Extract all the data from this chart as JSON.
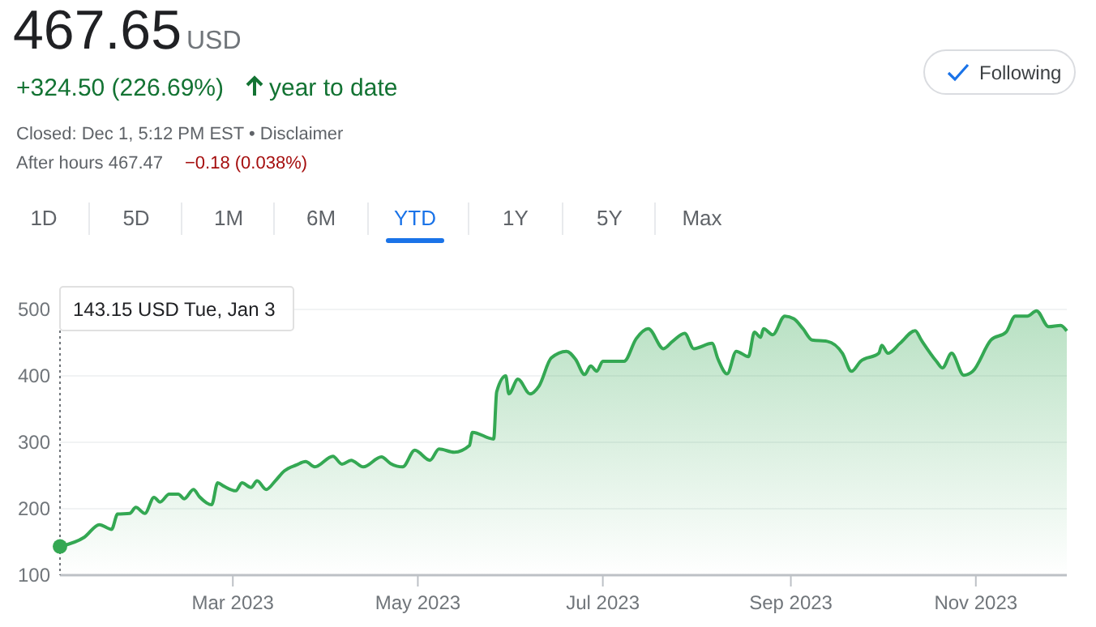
{
  "chart_data": {
    "type": "area",
    "title": "467.65",
    "annotations": [
      "USD",
      "+324.50 (226.69%)",
      "year to date",
      "Closed: Dec 1, 5:12 PM EST • Disclaimer",
      "After hours 467.47",
      "−0.18 (0.038%)",
      "Following",
      "1D",
      "5D",
      "1M",
      "6M",
      "YTD",
      "1Y",
      "5Y",
      "Max",
      "143.15 USD  Tue, Jan 3"
    ],
    "x": [
      "2023-01-03",
      "2023-01-11",
      "2023-01-16",
      "2023-01-20",
      "2023-01-22",
      "2023-01-26",
      "2023-01-28",
      "2023-01-31",
      "2023-02-03",
      "2023-02-05",
      "2023-02-08",
      "2023-02-11",
      "2023-02-13",
      "2023-02-16",
      "2023-02-18",
      "2023-02-22",
      "2023-02-24",
      "2023-02-26",
      "2023-03-02",
      "2023-03-04",
      "2023-03-07",
      "2023-03-09",
      "2023-03-12",
      "2023-03-15",
      "2023-03-18",
      "2023-03-22",
      "2023-03-25",
      "2023-03-28",
      "2023-04-03",
      "2023-04-06",
      "2023-04-09",
      "2023-04-13",
      "2023-04-19",
      "2023-04-22",
      "2023-04-26",
      "2023-04-30",
      "2023-05-05",
      "2023-05-08",
      "2023-05-13",
      "2023-05-18",
      "2023-05-19",
      "2023-05-26",
      "2023-05-27",
      "2023-05-30",
      "2023-05-31",
      "2023-06-03",
      "2023-06-07",
      "2023-06-10",
      "2023-06-14",
      "2023-06-19",
      "2023-06-22",
      "2023-06-25",
      "2023-06-27",
      "2023-06-29",
      "2023-07-01",
      "2023-07-08",
      "2023-07-12",
      "2023-07-16",
      "2023-07-21",
      "2023-07-24",
      "2023-07-28",
      "2023-07-31",
      "2023-08-06",
      "2023-08-08",
      "2023-08-11",
      "2023-08-14",
      "2023-08-18",
      "2023-08-20",
      "2023-08-22",
      "2023-08-23",
      "2023-08-26",
      "2023-08-30",
      "2023-09-02",
      "2023-09-05",
      "2023-09-08",
      "2023-09-13",
      "2023-09-18",
      "2023-09-21",
      "2023-09-24",
      "2023-09-30",
      "2023-10-01",
      "2023-10-03",
      "2023-10-07",
      "2023-10-12",
      "2023-10-14",
      "2023-10-19",
      "2023-10-21",
      "2023-10-24",
      "2023-10-28",
      "2023-10-31",
      "2023-11-06",
      "2023-11-11",
      "2023-11-14",
      "2023-11-18",
      "2023-11-21",
      "2023-11-25",
      "2023-11-29",
      "2023-12-01"
    ],
    "series": [
      {
        "color": "#34a853",
        "values": [
          143.15,
          157,
          176,
          169,
          192,
          193,
          202,
          193,
          217,
          210,
          222,
          222,
          215,
          229,
          218,
          206,
          239,
          234,
          227,
          239,
          232,
          242,
          229,
          242,
          257,
          266,
          271,
          263,
          279,
          267,
          273,
          263,
          278,
          268,
          263,
          288,
          273,
          290,
          285,
          295,
          315,
          305,
          376,
          400,
          373,
          395,
          373,
          385,
          427,
          437,
          425,
          402,
          415,
          407,
          422,
          422,
          456,
          471,
          441,
          452,
          464,
          441,
          449,
          425,
          403,
          437,
          429,
          466,
          458,
          471,
          462,
          490,
          486,
          471,
          454,
          452,
          434,
          407,
          422,
          434,
          446,
          434,
          449,
          468,
          454,
          422,
          412,
          434,
          401,
          407,
          454,
          466,
          490,
          490,
          498,
          474,
          476,
          467.65
        ]
      }
    ],
    "xlim": [
      "2023-01-03",
      "2023-12-01"
    ],
    "xticks": [
      {
        "value": "2023-03-01",
        "label": "Mar 2023"
      },
      {
        "value": "2023-05-01",
        "label": "May 2023"
      },
      {
        "value": "2023-07-01",
        "label": "Jul 2023"
      },
      {
        "value": "2023-09-01",
        "label": "Sep 2023"
      },
      {
        "value": "2023-11-01",
        "label": "Nov 2023"
      }
    ],
    "ylim": [
      100,
      500
    ],
    "yticks": [
      100,
      200,
      300,
      400,
      500
    ],
    "grid": "y"
  }
}
